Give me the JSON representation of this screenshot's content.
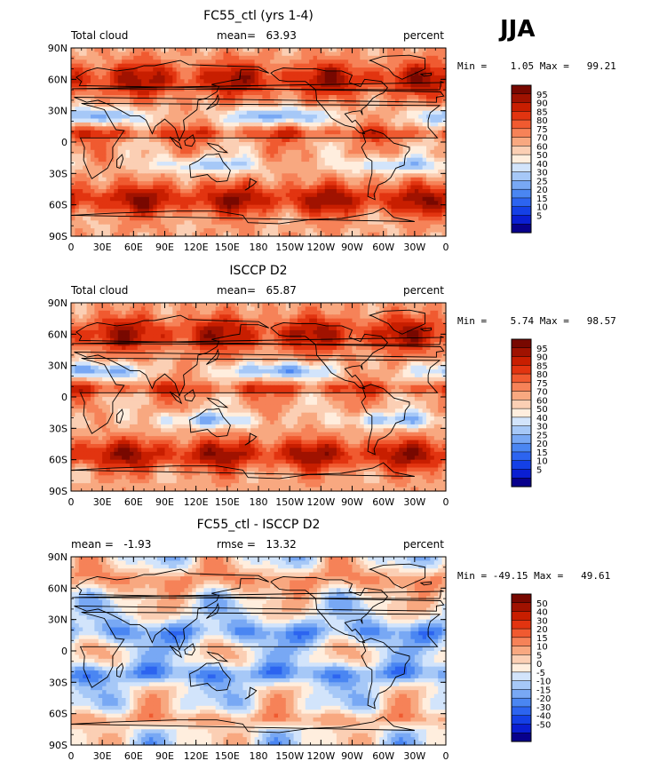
{
  "season": "JJA",
  "colors": {
    "scale": [
      "#08008c",
      "#0a1ed2",
      "#1440e6",
      "#2c64f0",
      "#4a86f2",
      "#78a8f4",
      "#a6c8f7",
      "#d2e4fb",
      "#ffeede",
      "#fbcfb4",
      "#f8a880",
      "#f68258",
      "#f05a30",
      "#e23410",
      "#c81e00",
      "#a01200",
      "#780800"
    ]
  },
  "panels": [
    {
      "title": "FC55_ctl (yrs 1-4)",
      "left_label": "Total cloud",
      "mid_label": "mean=   63.93",
      "units": "percent",
      "minmax": "Min =    1.05 Max =   99.21",
      "lat_ticks": [
        "90N",
        "60N",
        "30N",
        "0",
        "30S",
        "60S",
        "90S"
      ],
      "lon_ticks": [
        "0",
        "30E",
        "60E",
        "90E",
        "120E",
        "150E",
        "180",
        "150W",
        "120W",
        "90W",
        "60W",
        "30W",
        "0"
      ],
      "colorbar": {
        "labels": [
          "95",
          "90",
          "85",
          "80",
          "75",
          "70",
          "60",
          "50",
          "40",
          "30",
          "25",
          "20",
          "15",
          "10",
          "5"
        ]
      }
    },
    {
      "title": "ISCCP D2",
      "left_label": "Total cloud",
      "mid_label": "mean=   65.87",
      "units": "percent",
      "minmax": "Min =    5.74 Max =   98.57",
      "lat_ticks": [
        "90N",
        "60N",
        "30N",
        "0",
        "30S",
        "60S",
        "90S"
      ],
      "lon_ticks": [
        "0",
        "30E",
        "60E",
        "90E",
        "120E",
        "150E",
        "180",
        "150W",
        "120W",
        "90W",
        "60W",
        "30W",
        "0"
      ],
      "colorbar": {
        "labels": [
          "95",
          "90",
          "85",
          "80",
          "75",
          "70",
          "60",
          "50",
          "40",
          "30",
          "25",
          "20",
          "15",
          "10",
          "5"
        ]
      }
    },
    {
      "title": "FC55_ctl - ISCCP D2",
      "left_label": "mean =   -1.93",
      "mid_label": "rmse =   13.32",
      "units": "percent",
      "minmax": "Min = -49.15 Max =   49.61",
      "lat_ticks": [
        "90N",
        "60N",
        "30N",
        "0",
        "30S",
        "60S",
        "90S"
      ],
      "lon_ticks": [
        "0",
        "30E",
        "60E",
        "90E",
        "120E",
        "150E",
        "180",
        "150W",
        "120W",
        "90W",
        "60W",
        "30W",
        "0"
      ],
      "colorbar": {
        "labels": [
          "50",
          "40",
          "30",
          "20",
          "15",
          "10",
          "5",
          "0",
          "-5",
          "-10",
          "-15",
          "-20",
          "-30",
          "-40",
          "-50"
        ]
      }
    }
  ]
}
